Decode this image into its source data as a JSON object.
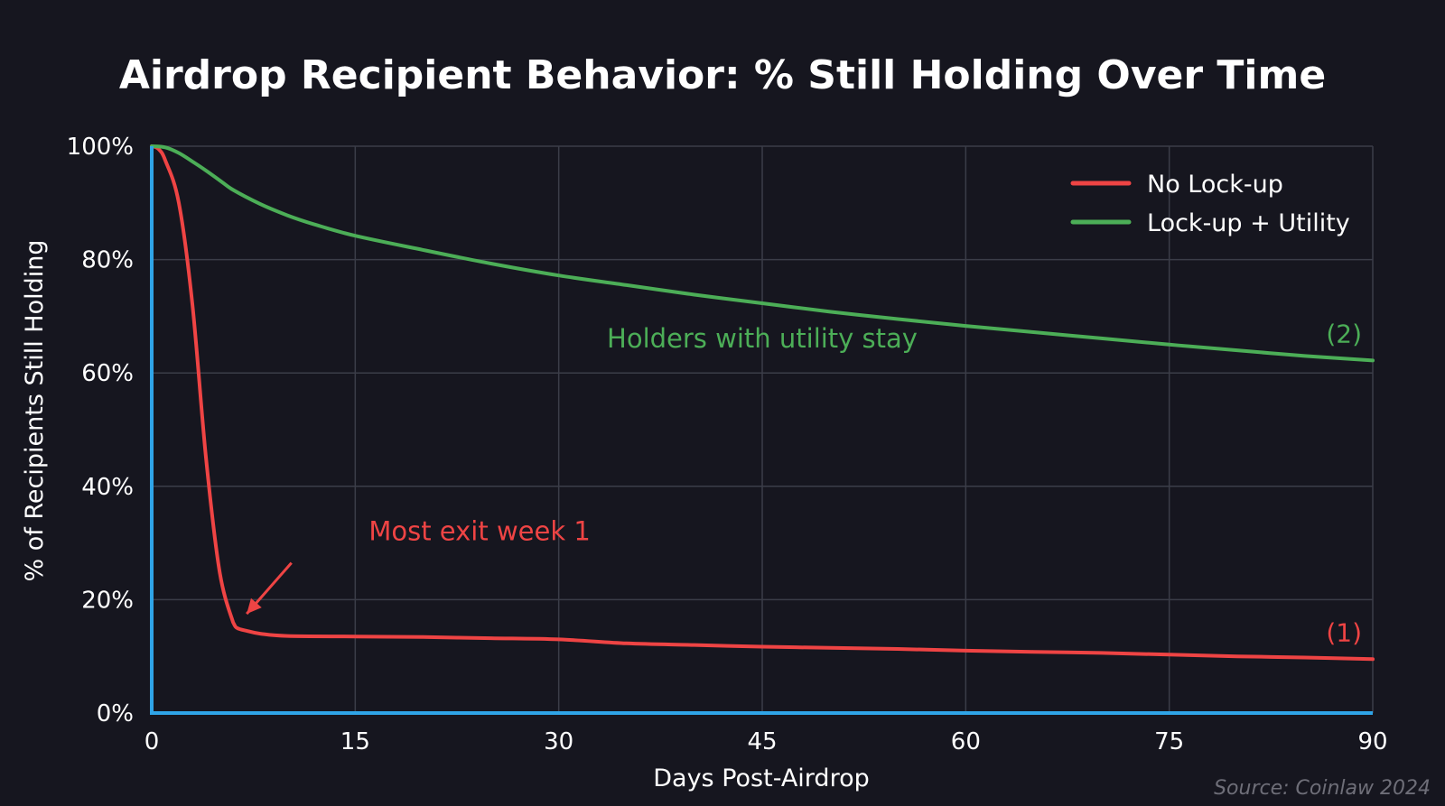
{
  "chart_data": {
    "type": "line",
    "title": "Airdrop Recipient Behavior: % Still Holding Over Time",
    "xlabel": "Days Post-Airdrop",
    "ylabel": "% of Recipients Still Holding",
    "xlim": [
      0,
      90
    ],
    "ylim": [
      0,
      100
    ],
    "x_ticks": [
      0,
      15,
      30,
      45,
      60,
      75,
      90
    ],
    "y_ticks": [
      0,
      20,
      40,
      60,
      80,
      100
    ],
    "y_tick_labels": [
      "0%",
      "20%",
      "40%",
      "60%",
      "80%",
      "100%"
    ],
    "grid": true,
    "legend_position": "top-right",
    "axis_color": "#2fa4e7",
    "series": [
      {
        "name": "No Lock-up",
        "color": "#ef4444",
        "end_label": "(1)",
        "x": [
          0,
          0.5,
          1,
          2,
          3,
          4,
          5,
          6,
          6.3,
          7,
          8,
          10,
          15,
          20,
          25,
          30,
          35,
          40,
          45,
          50,
          55,
          60,
          65,
          70,
          75,
          80,
          85,
          90
        ],
        "y": [
          100,
          99.5,
          97.5,
          90,
          72,
          45,
          25,
          16,
          15,
          14.5,
          14,
          13.6,
          13.5,
          13.4,
          13.2,
          13.0,
          12.3,
          12.0,
          11.7,
          11.5,
          11.3,
          11.0,
          10.8,
          10.6,
          10.3,
          10.0,
          9.8,
          9.5
        ]
      },
      {
        "name": "Lock-up + Utility",
        "color": "#4cae57",
        "end_label": "(2)",
        "x": [
          0,
          1,
          2,
          3,
          4,
          5,
          6,
          8,
          10,
          12,
          15,
          20,
          25,
          30,
          35,
          40,
          45,
          50,
          55,
          60,
          65,
          70,
          75,
          80,
          85,
          90
        ],
        "y": [
          100,
          99.8,
          98.8,
          97.3,
          95.7,
          94,
          92.3,
          89.8,
          87.8,
          86.2,
          84.2,
          81.7,
          79.3,
          77.2,
          75.5,
          73.8,
          72.3,
          70.8,
          69.5,
          68.3,
          67.2,
          66.1,
          65.0,
          64.0,
          63.0,
          62.2
        ]
      }
    ],
    "annotations": [
      {
        "text": "Most exit week 1",
        "color": "#ef4444",
        "x": 16,
        "y": 30.5,
        "arrow_from": [
          10.3,
          26.5
        ],
        "arrow_to": [
          7,
          17.5
        ]
      },
      {
        "text": "Holders with utility stay",
        "color": "#4cae57",
        "x": 45,
        "y": 64.5
      }
    ],
    "source": "Source: Coinlaw 2024"
  }
}
